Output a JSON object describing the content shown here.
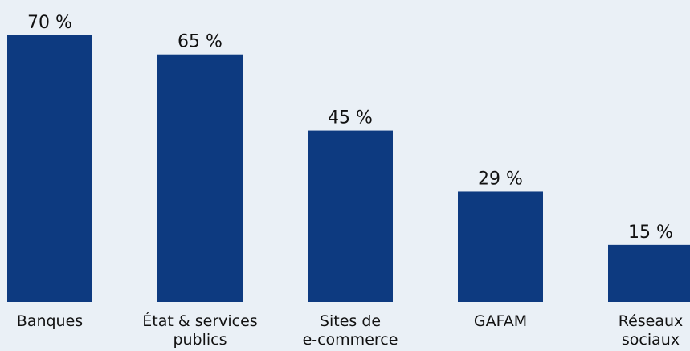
{
  "chart_data": {
    "type": "bar",
    "categories": [
      [
        "Banques"
      ],
      [
        "État & services",
        "publics"
      ],
      [
        "Sites de",
        "e-commerce"
      ],
      [
        "GAFAM"
      ],
      [
        "Réseaux",
        "sociaux"
      ]
    ],
    "values": [
      70,
      65,
      45,
      29,
      15
    ],
    "value_labels": [
      "70 %",
      "65 %",
      "45 %",
      "29 %",
      "15 %"
    ],
    "unit": "%",
    "ylim": [
      0,
      70
    ],
    "grid": false,
    "legend": "none",
    "colors": {
      "bar": "#0d3a80",
      "background": "#eaf0f6",
      "text": "#111111"
    }
  }
}
